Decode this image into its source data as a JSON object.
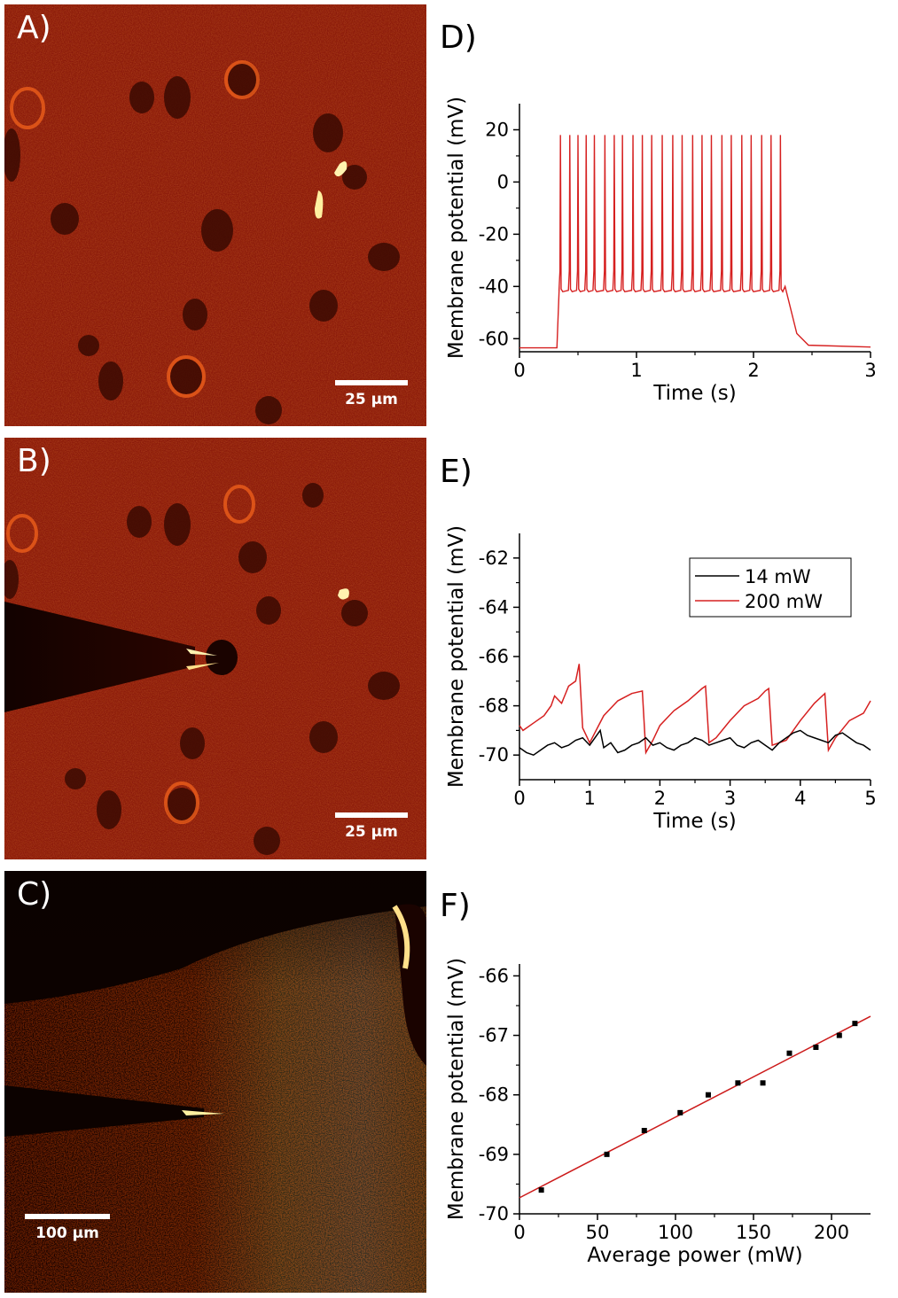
{
  "panels": {
    "A": {
      "letter": "A)",
      "scale_label": "25 µm"
    },
    "B": {
      "letter": "B)",
      "scale_label": "25 µm"
    },
    "C": {
      "letter": "C)",
      "scale_label": "100 µm"
    }
  },
  "colors": {
    "red_trace": "#d62020",
    "black_trace": "#000000",
    "fit_line": "#cc1a1a"
  },
  "chart_data": [
    {
      "panel": "D)",
      "type": "line",
      "xlabel": "Time (s)",
      "ylabel": "Membrane potential (mV)",
      "xlim": [
        0,
        3
      ],
      "ylim": [
        -65,
        30
      ],
      "xticks": [
        0,
        1,
        2,
        3
      ],
      "yticks": [
        -60,
        -40,
        -20,
        0,
        20
      ],
      "xtick_labels": [
        "0",
        "1",
        "2",
        "3"
      ],
      "ytick_labels": [
        "-60",
        "-40",
        "-20",
        "0",
        "20"
      ],
      "series": [
        {
          "color": "#d62020",
          "baseline": -63.5,
          "step_start": 0.32,
          "step_end": 2.27,
          "plateau": -40,
          "spike_times": [
            0.35,
            0.43,
            0.5,
            0.57,
            0.64,
            0.73,
            0.81,
            0.88,
            0.97,
            1.05,
            1.13,
            1.22,
            1.31,
            1.39,
            1.48,
            1.56,
            1.64,
            1.73,
            1.81,
            1.9,
            1.98,
            2.07,
            2.15,
            2.23
          ],
          "spike_peak": 18
        }
      ],
      "grid": false
    },
    {
      "panel": "E)",
      "type": "line",
      "xlabel": "Time (s)",
      "ylabel": "Membrane potential (mV)",
      "xlim": [
        0,
        5
      ],
      "ylim": [
        -71,
        -61
      ],
      "xticks": [
        0,
        1,
        2,
        3,
        4,
        5
      ],
      "yticks": [
        -70,
        -68,
        -66,
        -64,
        -62
      ],
      "xtick_labels": [
        "0",
        "1",
        "2",
        "3",
        "4",
        "5"
      ],
      "ytick_labels": [
        "-70",
        "-68",
        "-66",
        "-64",
        "-62"
      ],
      "legend": {
        "position": "top-right"
      },
      "series": [
        {
          "name": "14 mW",
          "color": "#000000",
          "x": [
            0,
            0.1,
            0.2,
            0.3,
            0.4,
            0.5,
            0.6,
            0.7,
            0.8,
            0.9,
            1.0,
            1.1,
            1.15,
            1.2,
            1.3,
            1.4,
            1.5,
            1.6,
            1.7,
            1.8,
            1.9,
            2.0,
            2.1,
            2.2,
            2.3,
            2.4,
            2.5,
            2.6,
            2.7,
            2.8,
            2.9,
            3.0,
            3.1,
            3.2,
            3.3,
            3.4,
            3.5,
            3.6,
            3.7,
            3.8,
            3.9,
            4.0,
            4.1,
            4.2,
            4.3,
            4.4,
            4.5,
            4.6,
            4.7,
            4.8,
            4.9,
            5.0
          ],
          "y": [
            -69.7,
            -69.9,
            -70.0,
            -69.8,
            -69.6,
            -69.5,
            -69.7,
            -69.6,
            -69.4,
            -69.3,
            -69.6,
            -69.2,
            -69.0,
            -69.7,
            -69.5,
            -69.9,
            -69.8,
            -69.6,
            -69.5,
            -69.3,
            -69.6,
            -69.5,
            -69.7,
            -69.8,
            -69.6,
            -69.5,
            -69.3,
            -69.4,
            -69.6,
            -69.5,
            -69.4,
            -69.3,
            -69.6,
            -69.7,
            -69.5,
            -69.4,
            -69.6,
            -69.8,
            -69.5,
            -69.3,
            -69.1,
            -69.0,
            -69.2,
            -69.3,
            -69.4,
            -69.5,
            -69.2,
            -69.1,
            -69.3,
            -69.5,
            -69.6,
            -69.8
          ]
        },
        {
          "name": "200 mW",
          "color": "#d62020",
          "x": [
            0,
            0.05,
            0.2,
            0.35,
            0.45,
            0.5,
            0.6,
            0.7,
            0.8,
            0.85,
            0.9,
            1.0,
            1.2,
            1.4,
            1.6,
            1.75,
            1.8,
            1.9,
            2.0,
            2.2,
            2.4,
            2.6,
            2.65,
            2.7,
            2.8,
            3.0,
            3.2,
            3.4,
            3.5,
            3.55,
            3.6,
            3.8,
            4.0,
            4.2,
            4.35,
            4.4,
            4.5,
            4.7,
            4.9,
            5.0
          ],
          "y": [
            -68.8,
            -69.0,
            -68.7,
            -68.4,
            -68.0,
            -67.6,
            -67.9,
            -67.2,
            -67.0,
            -66.3,
            -68.9,
            -69.5,
            -68.4,
            -67.8,
            -67.5,
            -67.4,
            -69.9,
            -69.4,
            -68.8,
            -68.2,
            -67.8,
            -67.3,
            -67.2,
            -69.5,
            -69.3,
            -68.6,
            -68.0,
            -67.7,
            -67.4,
            -67.3,
            -69.6,
            -69.4,
            -68.6,
            -67.9,
            -67.5,
            -69.8,
            -69.3,
            -68.6,
            -68.3,
            -67.8
          ]
        }
      ],
      "grid": false
    },
    {
      "panel": "F)",
      "type": "scatter",
      "xlabel": "Average power (mW)",
      "ylabel": "Membrane potential (mV)",
      "xlim": [
        0,
        225
      ],
      "ylim": [
        -70,
        -65.8
      ],
      "xticks": [
        0,
        50,
        100,
        150,
        200
      ],
      "yticks": [
        -70,
        -69,
        -68,
        -67,
        -66
      ],
      "xtick_labels": [
        "0",
        "50",
        "100",
        "150",
        "200"
      ],
      "ytick_labels": [
        "-70",
        "-69",
        "-68",
        "-67",
        "-66"
      ],
      "x": [
        14,
        56,
        80,
        103,
        121,
        140,
        156,
        173,
        190,
        205,
        215
      ],
      "y": [
        -69.6,
        -69.0,
        -68.6,
        -68.3,
        -68.0,
        -67.8,
        -67.8,
        -67.3,
        -67.2,
        -67.0,
        -66.8
      ],
      "fit": {
        "x": [
          0,
          225
        ],
        "y": [
          -69.73,
          -66.68
        ],
        "color": "#cc1a1a"
      },
      "grid": false
    }
  ]
}
